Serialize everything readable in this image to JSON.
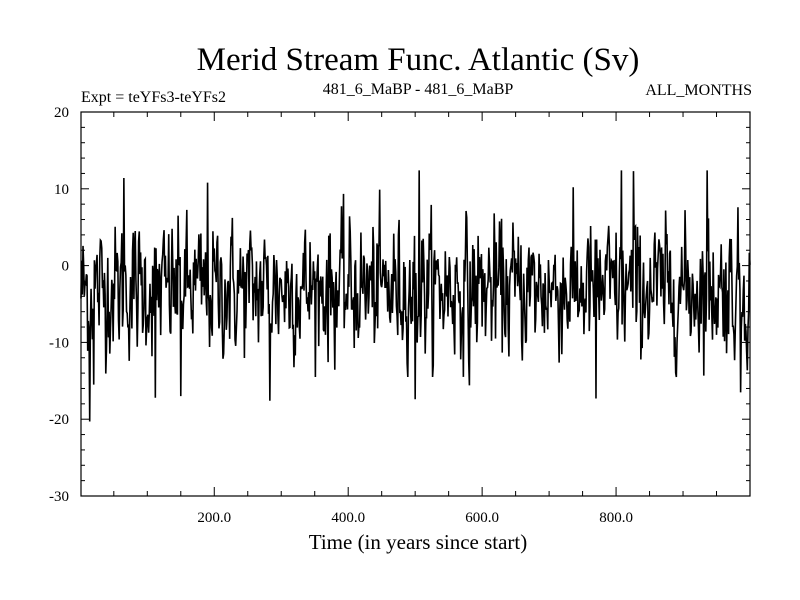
{
  "chart_data": {
    "type": "line",
    "title": "Merid Stream Func. Atlantic (Sv)",
    "subtitle_left": "Expt = teYFs3-teYFs2",
    "subtitle_center": "481_6_MaBP - 481_6_MaBP",
    "subtitle_right": "ALL_MONTHS",
    "xlabel": "Time (in years since start)",
    "ylabel": "",
    "xlim": [
      1,
      1000
    ],
    "ylim": [
      -30,
      20
    ],
    "xticks": [
      200,
      400,
      600,
      800
    ],
    "xtick_labels": [
      "200.0",
      "400.0",
      "600.0",
      "800.0"
    ],
    "yticks": [
      20,
      10,
      0,
      -10,
      -20,
      -30
    ],
    "ytick_labels": [
      "20",
      "10",
      "0",
      "-10",
      "-20",
      "-30"
    ],
    "series": [
      {
        "name": "Merid Stream Func. Atlantic",
        "description": "noisy annual series, mean about -3 Sv, mostly between -12 and 8 Sv, extremes near 12.5 and -20 Sv",
        "x_start": 1,
        "x_step": 1,
        "n_points": 1000,
        "mean": -3,
        "std": 4.6,
        "peaks": [
          [
            14,
            -20.3
          ],
          [
            20,
            -15.5
          ],
          [
            65,
            11.4
          ],
          [
            112,
            -17.2
          ],
          [
            150,
            -17
          ],
          [
            190,
            10.8
          ],
          [
            283,
            -17.6
          ],
          [
            500,
            -17.4
          ],
          [
            506,
            12.4
          ],
          [
            581,
            -15.6
          ],
          [
            770,
            -17.3
          ],
          [
            808,
            12.4
          ],
          [
            826,
            12.3
          ],
          [
            936,
            12.4
          ],
          [
            986,
            -16.5
          ]
        ]
      }
    ]
  }
}
